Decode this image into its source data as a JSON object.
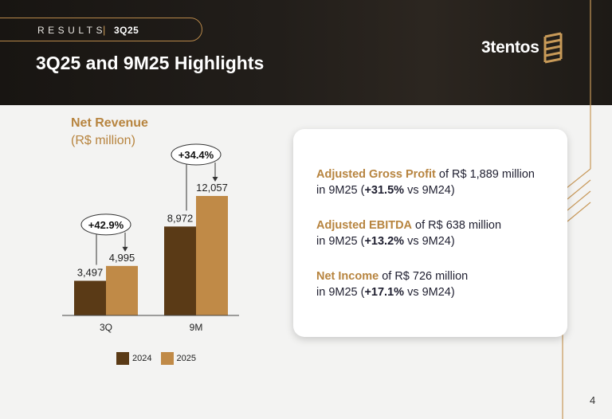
{
  "header": {
    "section": "RESULTS",
    "separator": "|",
    "period": "3Q25",
    "title": "3Q25 and 9M25 Highlights",
    "logo_text": "3tentos"
  },
  "colors": {
    "series_2024": "#5a3a16",
    "series_2025": "#c08a47",
    "accent": "#b7843f",
    "header_bg": "#1c1915"
  },
  "net_revenue": {
    "title": "Net Revenue",
    "unit": "(R$ million)"
  },
  "chart_data": {
    "type": "bar",
    "categories": [
      "3Q",
      "9M"
    ],
    "series": [
      {
        "name": "2024",
        "values": [
          3497,
          8972
        ],
        "labels": [
          "3,497",
          "8,972"
        ]
      },
      {
        "name": "2025",
        "values": [
          4995,
          12057
        ],
        "labels": [
          "4,995",
          "12,057"
        ]
      }
    ],
    "growth_labels": [
      "+42.9%",
      "+34.4%"
    ],
    "ylim": [
      0,
      12057
    ],
    "legend": "bottom"
  },
  "highlights": [
    {
      "lead": "Adjusted Gross Profit",
      "text1": " of R$ 1,889 million",
      "text2": "in 9M25 (",
      "pct": "+31.5%",
      "text3": " vs 9M24)"
    },
    {
      "lead": "Adjusted EBITDA",
      "text1": " of R$ 638 million",
      "text2": "in 9M25 (",
      "pct": "+13.2%",
      "text3": " vs 9M24)"
    },
    {
      "lead": "Net Income",
      "text1": " of R$ 726 million",
      "text2": "in 9M25 (",
      "pct": "+17.1%",
      "text3": " vs 9M24)"
    }
  ],
  "page_number": "4"
}
